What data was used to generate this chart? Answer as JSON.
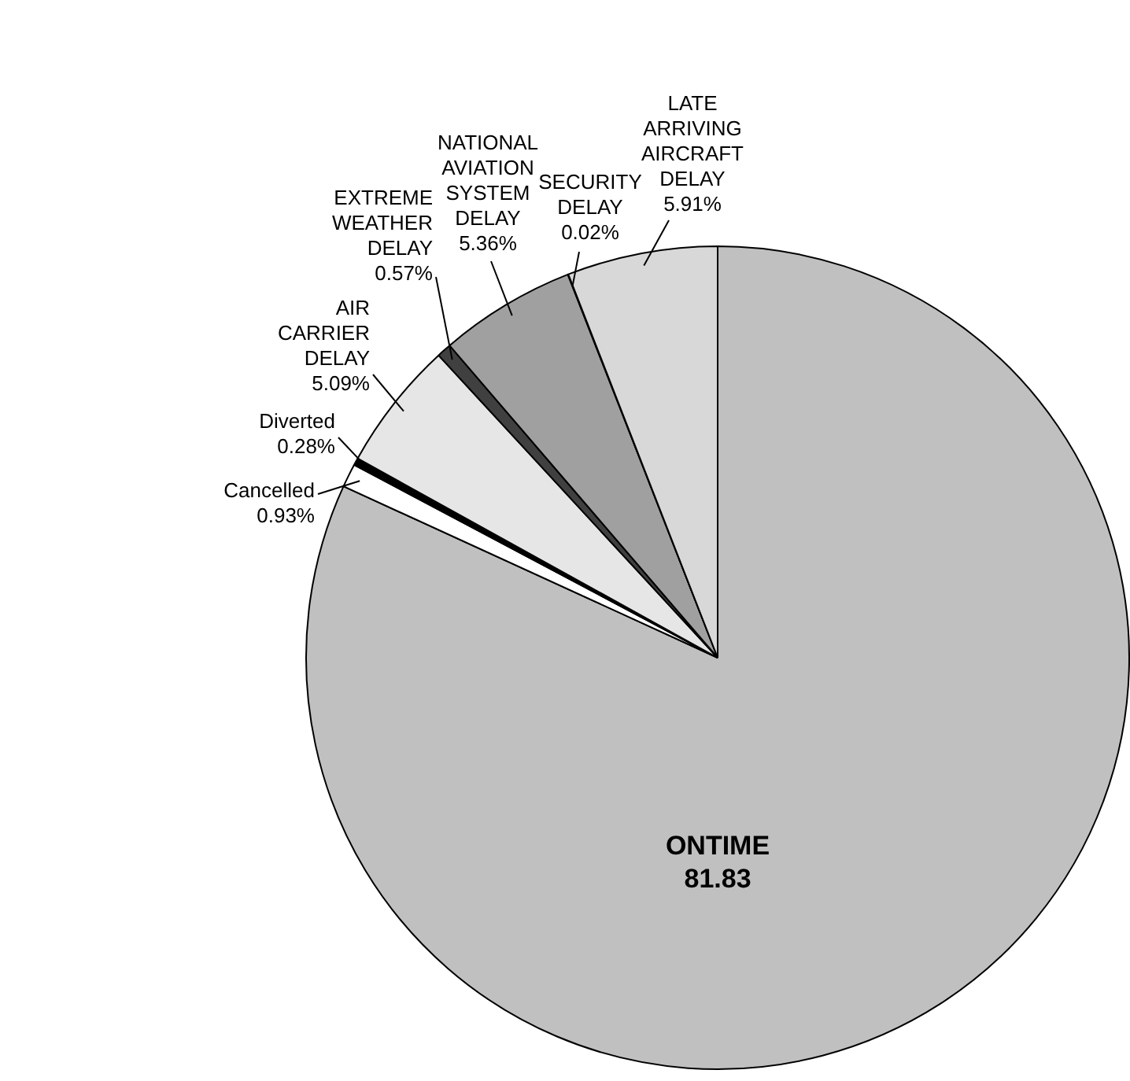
{
  "chart_data": {
    "type": "pie",
    "categories": [
      "ONTIME",
      "Cancelled",
      "Diverted",
      "AIR CARRIER DELAY",
      "EXTREME WEATHER DELAY",
      "NATIONAL AVIATION SYSTEM DELAY",
      "SECURITY DELAY",
      "LATE ARRIVING AIRCRAFT DELAY"
    ],
    "values": [
      81.83,
      0.93,
      0.28,
      5.09,
      0.57,
      5.36,
      0.02,
      5.91
    ],
    "value_labels": [
      "81.83",
      "0.93%",
      "0.28%",
      "5.09%",
      "0.57%",
      "5.36%",
      "0.02%",
      "5.91%"
    ],
    "colors": [
      "#c0c0c0",
      "#ffffff",
      "#000000",
      "#e6e6e6",
      "#404040",
      "#a0a0a0",
      "#000000",
      "#d8d8d8"
    ],
    "legend": false
  }
}
